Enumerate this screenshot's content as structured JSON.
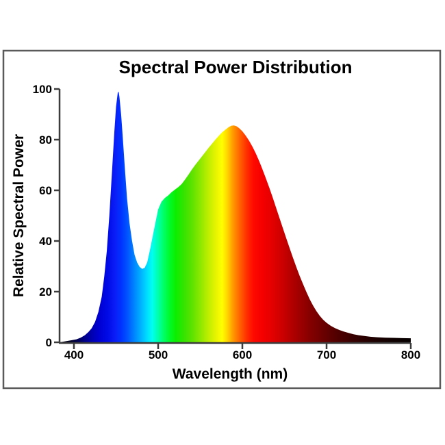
{
  "chart": {
    "title": "Spectral Power Distribution",
    "xlabel": "Wavelength (nm)",
    "ylabel": "Relative Spectral Power",
    "frame_color": "#5a5a5a",
    "axis_color": "#3c3c3c",
    "text_color": "#000000",
    "background_color": "#ffffff"
  },
  "chart_data": {
    "type": "area",
    "title": "Spectral Power Distribution",
    "xlabel": "Wavelength (nm)",
    "ylabel": "Relative Spectral Power",
    "xlim": [
      383,
      800
    ],
    "ylim": [
      0,
      100
    ],
    "x_ticks": [
      400,
      500,
      600,
      700,
      800
    ],
    "y_ticks": [
      0,
      20,
      40,
      60,
      80,
      100
    ],
    "grid": false,
    "legend": "none",
    "notable_points": {
      "blue_led_peak": {
        "wavelength_nm": 453,
        "value": 99
      },
      "valley": {
        "wavelength_nm": 481,
        "value": 29
      },
      "phosphor_peak": {
        "wavelength_nm": 589,
        "value": 86
      },
      "green_shoulder": {
        "wavelength_nm": 524,
        "value": 61
      }
    },
    "series": [
      {
        "name": "relative spectral power",
        "x": [
          383,
          390,
          397,
          403,
          408,
          413,
          417,
          421,
          425,
          429,
          433,
          436,
          439,
          442,
          445,
          448,
          450,
          452,
          453,
          454,
          456,
          458,
          460,
          463,
          466,
          469,
          472,
          475,
          478,
          481,
          484,
          487,
          490,
          493,
          496,
          500,
          504,
          508,
          512,
          516,
          520,
          524,
          528,
          532,
          536,
          540,
          544,
          548,
          552,
          556,
          560,
          564,
          568,
          572,
          576,
          580,
          584,
          587,
          590,
          593,
          596,
          600,
          604,
          608,
          612,
          616,
          620,
          624,
          628,
          632,
          636,
          640,
          644,
          648,
          652,
          656,
          660,
          664,
          668,
          672,
          676,
          680,
          684,
          688,
          692,
          696,
          700,
          705,
          710,
          715,
          720,
          726,
          732,
          738,
          745,
          752,
          760,
          770,
          780,
          790,
          800
        ],
        "y": [
          0,
          0.4,
          0.8,
          1.2,
          1.8,
          2.8,
          4,
          5.5,
          8,
          12,
          18,
          26,
          36,
          50,
          66,
          83,
          93,
          98.5,
          99,
          97,
          90,
          81,
          71,
          57,
          47,
          40,
          34.5,
          31.5,
          29.8,
          29,
          29.4,
          31.5,
          36,
          41,
          46,
          52.5,
          55.5,
          57,
          58,
          59.3,
          60.3,
          61.3,
          62.5,
          64.3,
          66.2,
          68.2,
          70,
          71.7,
          73.4,
          75.1,
          76.8,
          78.4,
          80,
          81.5,
          82.9,
          84,
          85,
          85.5,
          85.6,
          85.3,
          84.6,
          83.3,
          81.6,
          79.6,
          77.2,
          74.5,
          71.5,
          68.2,
          64.7,
          61,
          57.2,
          53.2,
          49.2,
          45.2,
          41.2,
          37.3,
          33.5,
          29.8,
          26.3,
          23,
          19.9,
          17,
          14.5,
          12.3,
          10.4,
          8.9,
          7.7,
          6.5,
          5.6,
          4.9,
          4.3,
          3.7,
          3.2,
          2.8,
          2.5,
          2.2,
          2,
          1.85,
          1.75,
          1.65,
          1.6
        ]
      }
    ],
    "spectrum_gradient_stops": [
      {
        "wavelength": 383,
        "color": "#000008"
      },
      {
        "wavelength": 395,
        "color": "#000022"
      },
      {
        "wavelength": 405,
        "color": "#000055"
      },
      {
        "wavelength": 414,
        "color": "#000090"
      },
      {
        "wavelength": 422,
        "color": "#0000b4"
      },
      {
        "wavelength": 430,
        "color": "#0000d2"
      },
      {
        "wavelength": 440,
        "color": "#000ae6"
      },
      {
        "wavelength": 449,
        "color": "#0a1ef8"
      },
      {
        "wavelength": 456,
        "color": "#0032ff"
      },
      {
        "wavelength": 464,
        "color": "#0056ff"
      },
      {
        "wavelength": 472,
        "color": "#0086ff"
      },
      {
        "wavelength": 480,
        "color": "#00b4ff"
      },
      {
        "wavelength": 487,
        "color": "#00deff"
      },
      {
        "wavelength": 493,
        "color": "#00fff0"
      },
      {
        "wavelength": 500,
        "color": "#00ffaa"
      },
      {
        "wavelength": 507,
        "color": "#00ff62"
      },
      {
        "wavelength": 514,
        "color": "#00fa28"
      },
      {
        "wavelength": 521,
        "color": "#0cee00"
      },
      {
        "wavelength": 530,
        "color": "#32e400"
      },
      {
        "wavelength": 540,
        "color": "#5ce200"
      },
      {
        "wavelength": 550,
        "color": "#8ce800"
      },
      {
        "wavelength": 560,
        "color": "#c0ee00"
      },
      {
        "wavelength": 569,
        "color": "#e8f400"
      },
      {
        "wavelength": 576,
        "color": "#ffff00"
      },
      {
        "wavelength": 582,
        "color": "#ffd600"
      },
      {
        "wavelength": 589,
        "color": "#ff9900"
      },
      {
        "wavelength": 597,
        "color": "#ff6200"
      },
      {
        "wavelength": 605,
        "color": "#ff3000"
      },
      {
        "wavelength": 613,
        "color": "#ff0a00"
      },
      {
        "wavelength": 623,
        "color": "#f60000"
      },
      {
        "wavelength": 634,
        "color": "#e60000"
      },
      {
        "wavelength": 648,
        "color": "#cb0000"
      },
      {
        "wavelength": 663,
        "color": "#a90000"
      },
      {
        "wavelength": 680,
        "color": "#860000"
      },
      {
        "wavelength": 697,
        "color": "#690000"
      },
      {
        "wavelength": 713,
        "color": "#500000"
      },
      {
        "wavelength": 729,
        "color": "#3b0000"
      },
      {
        "wavelength": 745,
        "color": "#290000"
      },
      {
        "wavelength": 761,
        "color": "#1b0000"
      },
      {
        "wavelength": 779,
        "color": "#0f0000"
      },
      {
        "wavelength": 800,
        "color": "#070000"
      }
    ]
  }
}
